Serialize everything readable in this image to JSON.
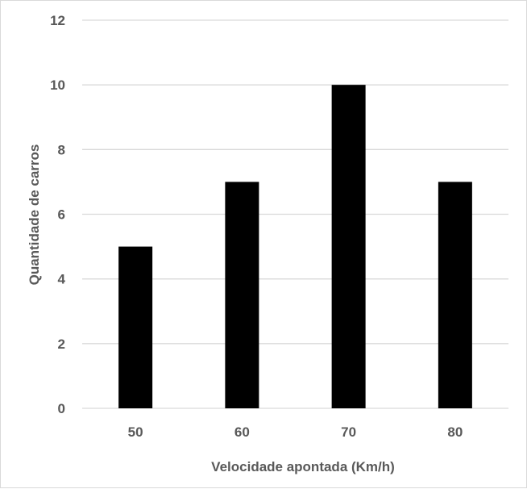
{
  "chart_data": {
    "type": "bar",
    "title": "",
    "xlabel": "Velocidade apontada (Km/h)",
    "ylabel": "Quantidade de carros",
    "categories": [
      "50",
      "60",
      "70",
      "80"
    ],
    "values": [
      5,
      7,
      10,
      7
    ],
    "ylim": [
      0,
      12
    ],
    "yticks": [
      0,
      2,
      4,
      6,
      8,
      10,
      12
    ],
    "grid": true,
    "legend": "none",
    "bar_color": "#000000",
    "grid_color": "#d9d9d9",
    "text_color": "#595959"
  }
}
